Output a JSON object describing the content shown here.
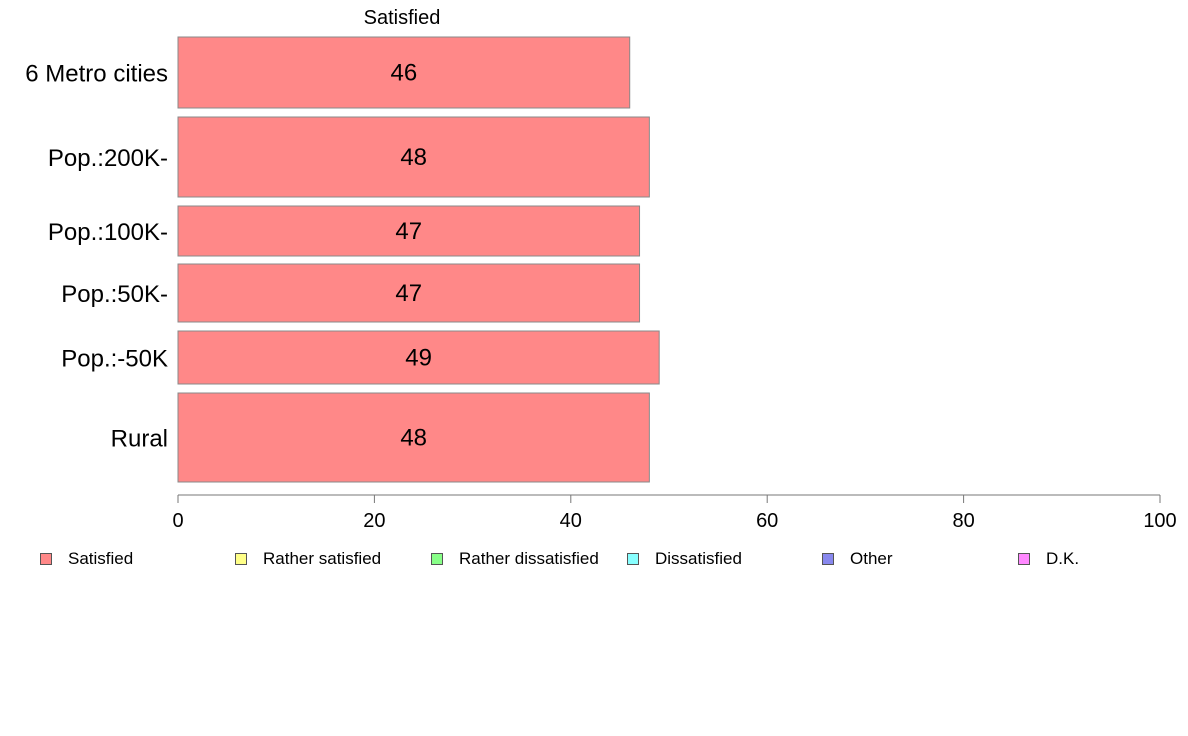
{
  "chart_data": {
    "type": "bar",
    "orientation": "horizontal",
    "title": "Satisfied",
    "categories": [
      "6 Metro cities",
      "Pop.:200K-",
      "Pop.:100K-",
      "Pop.:50K-",
      "Pop.:-50K",
      "Rural"
    ],
    "series": [
      {
        "name": "Satisfied",
        "values": [
          46,
          48,
          47,
          47,
          49,
          48
        ],
        "color": "#ff8888"
      }
    ],
    "data_labels": [
      "46",
      "48",
      "47",
      "47",
      "49",
      "48"
    ],
    "xlim": [
      0,
      100
    ],
    "xticks": [
      0,
      20,
      40,
      60,
      80,
      100
    ],
    "xtick_labels": [
      "0",
      "20",
      "40",
      "60",
      "80",
      "100"
    ],
    "xlabel": "",
    "ylabel": "",
    "grid": false,
    "legend_position": "bottom"
  },
  "legend": {
    "items": [
      {
        "label": "Satisfied",
        "color": "#ff8888"
      },
      {
        "label": "Rather satisfied",
        "color": "#ffff88"
      },
      {
        "label": "Rather dissatisfied",
        "color": "#88ff88"
      },
      {
        "label": "Dissatisfied",
        "color": "#88ffff"
      },
      {
        "label": "Other",
        "color": "#8888ee"
      },
      {
        "label": "D.K.",
        "color": "#ff88ff"
      }
    ]
  }
}
